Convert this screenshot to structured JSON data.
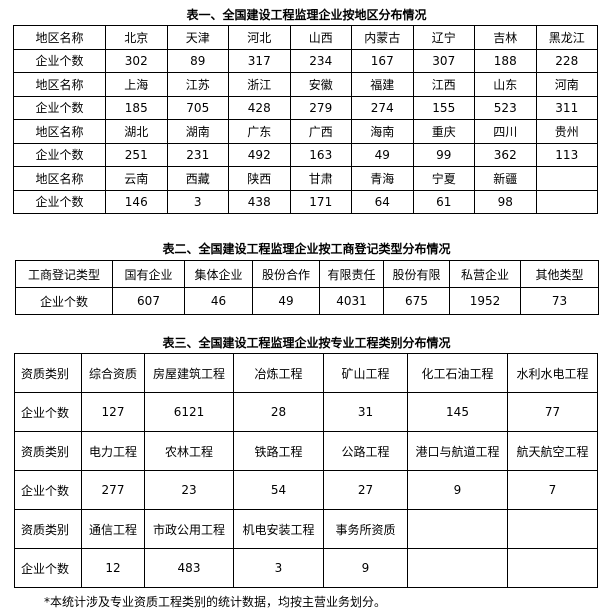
{
  "table1": {
    "title": "表一、全国建设工程监理企业按地区分布情况",
    "row_label_name": "地区名称",
    "row_label_count": "企业个数",
    "groups": [
      {
        "names": [
          "北京",
          "天津",
          "河北",
          "山西",
          "内蒙古",
          "辽宁",
          "吉林",
          "黑龙江"
        ],
        "counts": [
          "302",
          "89",
          "317",
          "234",
          "167",
          "307",
          "188",
          "228"
        ]
      },
      {
        "names": [
          "上海",
          "江苏",
          "浙江",
          "安徽",
          "福建",
          "江西",
          "山东",
          "河南"
        ],
        "counts": [
          "185",
          "705",
          "428",
          "279",
          "274",
          "155",
          "523",
          "311"
        ]
      },
      {
        "names": [
          "湖北",
          "湖南",
          "广东",
          "广西",
          "海南",
          "重庆",
          "四川",
          "贵州"
        ],
        "counts": [
          "251",
          "231",
          "492",
          "163",
          "49",
          "99",
          "362",
          "113"
        ]
      },
      {
        "names": [
          "云南",
          "西藏",
          "陕西",
          "甘肃",
          "青海",
          "宁夏",
          "新疆",
          ""
        ],
        "counts": [
          "146",
          "3",
          "438",
          "171",
          "64",
          "61",
          "98",
          ""
        ]
      }
    ]
  },
  "table2": {
    "title": "表二、全国建设工程监理企业按工商登记类型分布情况",
    "header_label": "工商登记类型",
    "count_label": "企业个数",
    "types": [
      "国有企业",
      "集体企业",
      "股份合作",
      "有限责任",
      "股份有限",
      "私营企业",
      "其他类型"
    ],
    "counts": [
      "607",
      "46",
      "49",
      "4031",
      "675",
      "1952",
      "73"
    ]
  },
  "table3": {
    "title": "表三、全国建设工程监理企业按专业工程类别分布情况",
    "row_label_name": "资质类别",
    "row_label_count": "企业个数",
    "groups": [
      {
        "names": [
          "综合资质",
          "房屋建筑工程",
          "冶炼工程",
          "矿山工程",
          "化工石油工程",
          "水利水电工程"
        ],
        "counts": [
          "127",
          "6121",
          "28",
          "31",
          "145",
          "77"
        ]
      },
      {
        "names": [
          "电力工程",
          "农林工程",
          "铁路工程",
          "公路工程",
          "港口与航道工程",
          "航天航空工程"
        ],
        "counts": [
          "277",
          "23",
          "54",
          "27",
          "9",
          "7"
        ]
      },
      {
        "names": [
          "通信工程",
          "市政公用工程",
          "机电安装工程",
          "事务所资质",
          "",
          ""
        ],
        "counts": [
          "12",
          "483",
          "3",
          "9",
          "",
          ""
        ]
      }
    ]
  },
  "footnote": "*本统计涉及专业资质工程类别的统计数据，均按主营业务划分。"
}
